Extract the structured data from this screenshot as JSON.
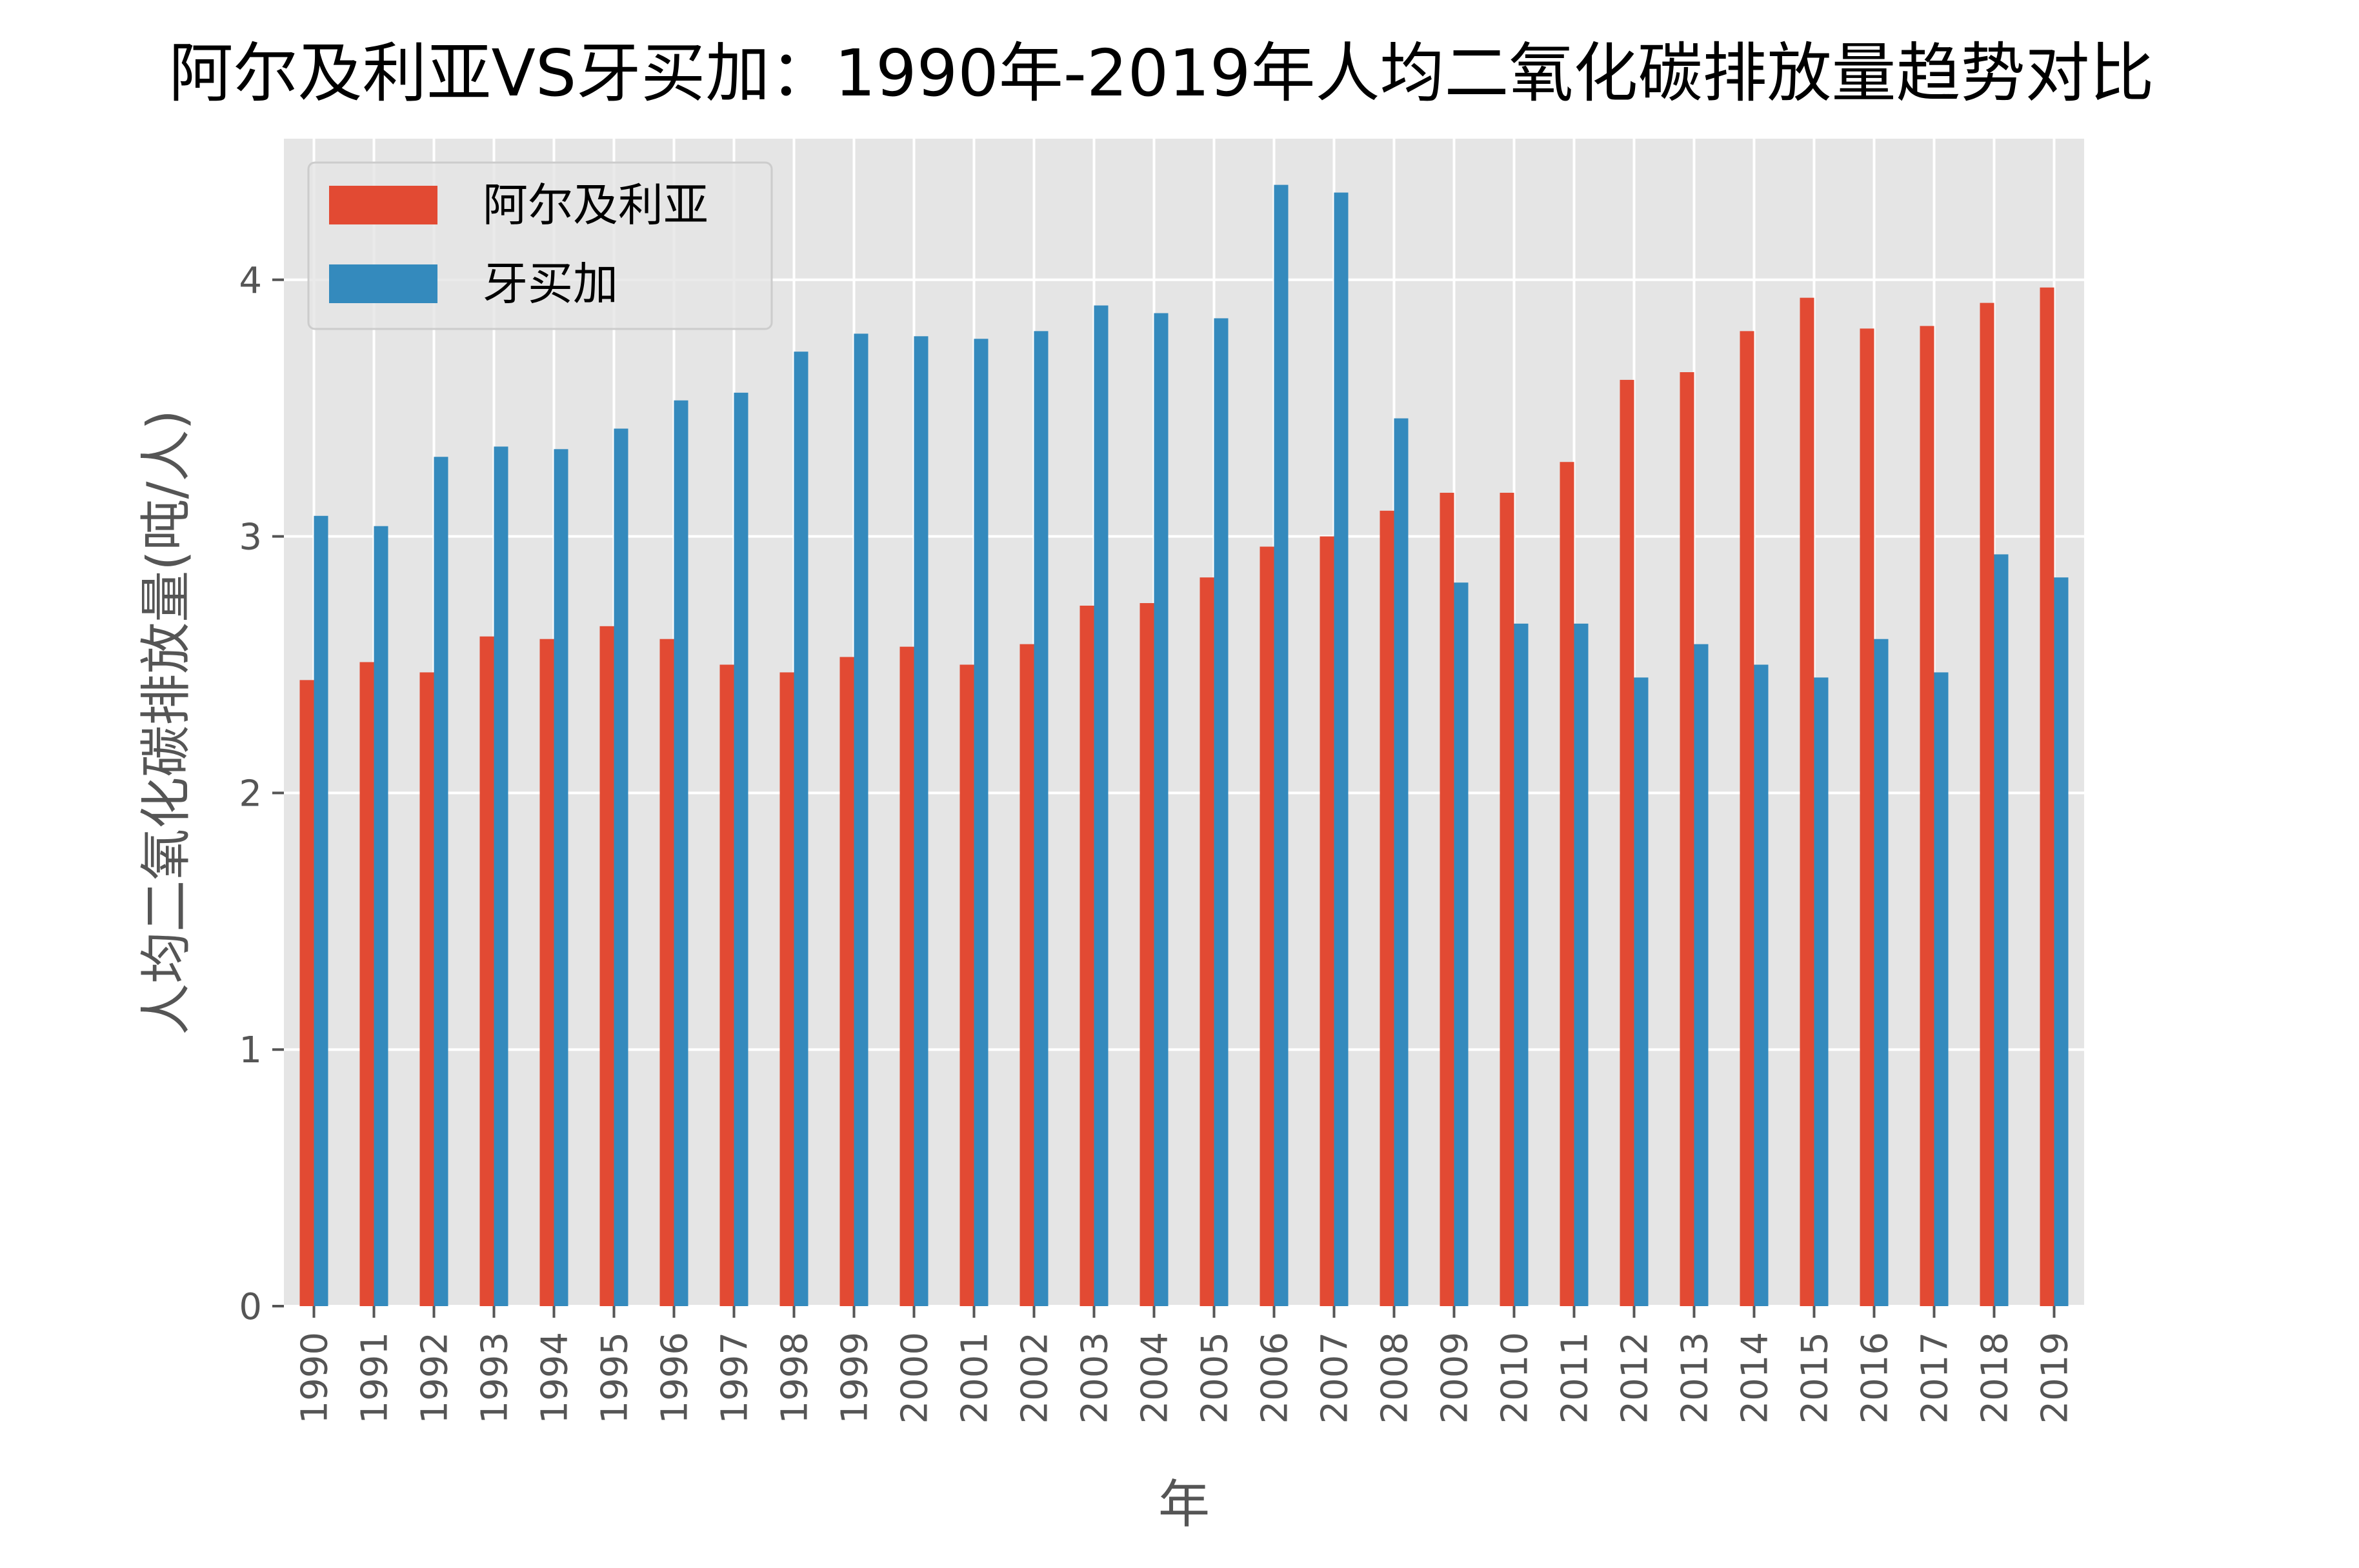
{
  "chart_data": {
    "type": "bar",
    "title": "阿尔及利亚VS牙买加：1990年-2019年人均二氧化碳排放量趋势对比",
    "xlabel": "年",
    "ylabel": "人均二氧化碳排放量(吨/人)",
    "ylim": [
      0,
      4.55
    ],
    "yticks": [
      0,
      1,
      2,
      3,
      4
    ],
    "grid": true,
    "legend_position": "top-left",
    "categories": [
      "1990",
      "1991",
      "1992",
      "1993",
      "1994",
      "1995",
      "1996",
      "1997",
      "1998",
      "1999",
      "2000",
      "2001",
      "2002",
      "2003",
      "2004",
      "2005",
      "2006",
      "2007",
      "2008",
      "2009",
      "2010",
      "2011",
      "2012",
      "2013",
      "2014",
      "2015",
      "2016",
      "2017",
      "2018",
      "2019"
    ],
    "series": [
      {
        "name": "阿尔及利亚",
        "color": "#E24A33",
        "values": [
          2.44,
          2.51,
          2.47,
          2.61,
          2.6,
          2.65,
          2.6,
          2.5,
          2.47,
          2.53,
          2.57,
          2.5,
          2.58,
          2.73,
          2.74,
          2.84,
          2.96,
          3.0,
          3.1,
          3.17,
          3.17,
          3.29,
          3.61,
          3.64,
          3.8,
          3.93,
          3.81,
          3.82,
          3.91,
          3.97
        ]
      },
      {
        "name": "牙买加",
        "color": "#348ABD",
        "values": [
          3.08,
          3.04,
          3.31,
          3.35,
          3.34,
          3.42,
          3.53,
          3.56,
          3.72,
          3.79,
          3.78,
          3.77,
          3.8,
          3.9,
          3.87,
          3.85,
          4.37,
          4.34,
          3.46,
          2.82,
          2.66,
          2.66,
          2.45,
          2.58,
          2.5,
          2.45,
          2.6,
          2.47,
          2.93,
          2.84
        ]
      }
    ]
  },
  "colors": {
    "plot_background": "#E5E5E5",
    "grid": "#FFFFFF",
    "axis_text": "#555555"
  }
}
